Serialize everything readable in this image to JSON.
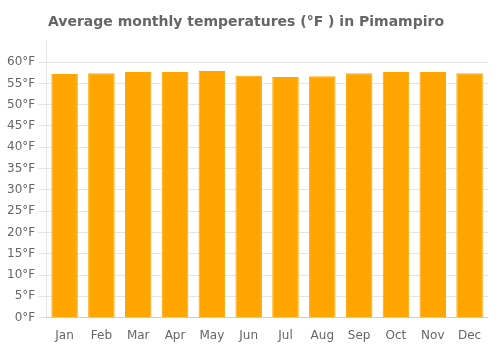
{
  "chart_data": {
    "type": "bar",
    "title": "Average monthly temperatures (°F ) in Pimampiro",
    "categories": [
      "Jan",
      "Feb",
      "Mar",
      "Apr",
      "May",
      "Jun",
      "Jul",
      "Aug",
      "Sep",
      "Oct",
      "Nov",
      "Dec"
    ],
    "values": [
      57.2,
      57.4,
      57.7,
      57.7,
      57.9,
      56.8,
      56.5,
      56.7,
      57.4,
      57.7,
      57.7,
      57.4
    ],
    "color": "#FFA500",
    "ylim": [
      0,
      65
    ],
    "yticks": [
      {
        "value": 0,
        "label": "0°F"
      },
      {
        "value": 5,
        "label": "5°F"
      },
      {
        "value": 10,
        "label": "10°F"
      },
      {
        "value": 15,
        "label": "15°F"
      },
      {
        "value": 20,
        "label": "20°F"
      },
      {
        "value": 25,
        "label": "25°F"
      },
      {
        "value": 30,
        "label": "30°F"
      },
      {
        "value": 35,
        "label": "35°F"
      },
      {
        "value": 40,
        "label": "40°F"
      },
      {
        "value": 45,
        "label": "45°F"
      },
      {
        "value": 50,
        "label": "50°F"
      },
      {
        "value": 55,
        "label": "55°F"
      },
      {
        "value": 60,
        "label": "60°F"
      }
    ],
    "grid": true
  }
}
